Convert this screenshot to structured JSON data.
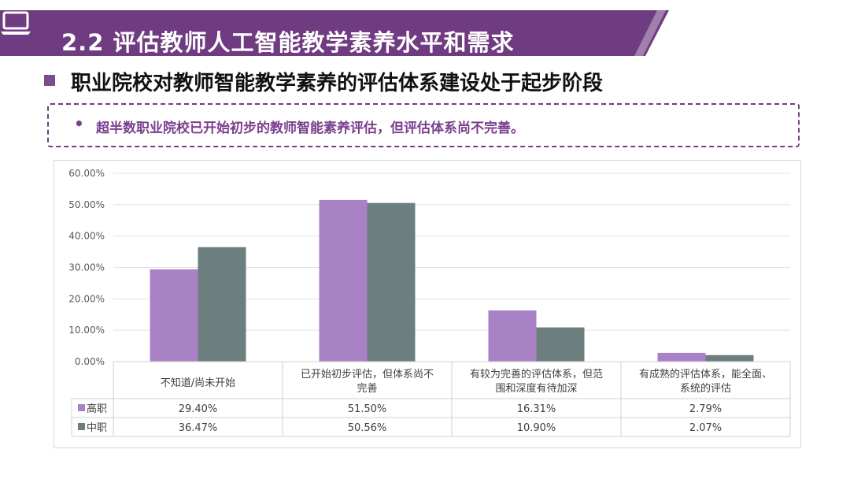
{
  "header": {
    "title": "2.2 评估教师人工智能教学素养水平和需求",
    "subtitle": "职业院校对教师智能教学素养的评估体系建设处于起步阶段",
    "note_bullet": "•",
    "note": "超半数职业院校已开始初步的教师智能素养评估，但评估体系尚不完善。"
  },
  "colors": {
    "banner": "#6f3b81",
    "note": "#7a3f8f",
    "gaozhi": "#a982c6",
    "zhongzhi": "#6d7e7e"
  },
  "chart_data": {
    "type": "bar",
    "title": "",
    "ylabel": "",
    "ylim": [
      0,
      60
    ],
    "yticks": [
      "0.00%",
      "10.00%",
      "20.00%",
      "30.00%",
      "40.00%",
      "50.00%",
      "60.00%"
    ],
    "categories": [
      [
        "不知道/尚未开始"
      ],
      [
        "已开始初步评估，但体系尚不",
        "完善"
      ],
      [
        "有较为完善的评估体系，但范",
        "围和深度有待加深"
      ],
      [
        "有成熟的评估体系，能全面、",
        "系统的评估"
      ]
    ],
    "series": [
      {
        "name": "高职",
        "values": [
          29.4,
          51.5,
          16.31,
          2.79
        ],
        "labels": [
          "29.40%",
          "51.50%",
          "16.31%",
          "2.79%"
        ]
      },
      {
        "name": "中职",
        "values": [
          36.47,
          50.56,
          10.9,
          2.07
        ],
        "labels": [
          "36.47%",
          "50.56%",
          "10.90%",
          "2.07%"
        ]
      }
    ]
  }
}
